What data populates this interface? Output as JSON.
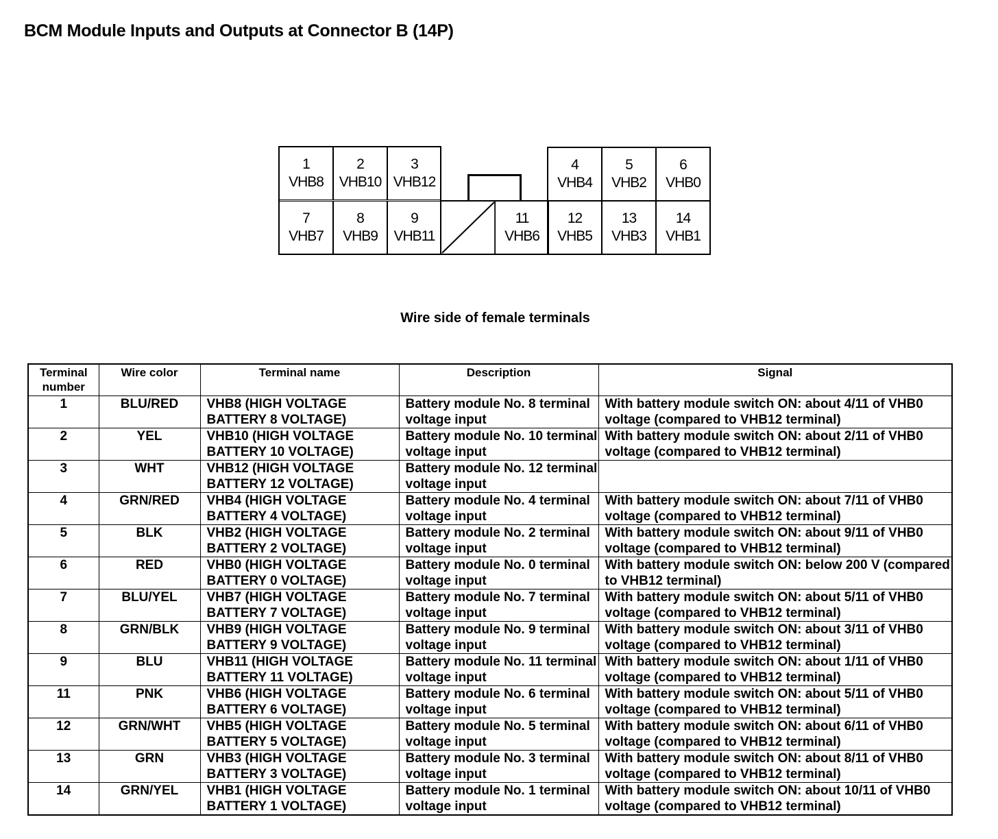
{
  "title": "BCM Module Inputs and Outputs at Connector B (14P)",
  "connector": {
    "caption": "Wire side of female terminals",
    "cells": [
      {
        "num": "1",
        "name": "VHB8"
      },
      {
        "num": "2",
        "name": "VHB10"
      },
      {
        "num": "3",
        "name": "VHB12"
      },
      {
        "num": "4",
        "name": "VHB4"
      },
      {
        "num": "5",
        "name": "VHB2"
      },
      {
        "num": "6",
        "name": "VHB0"
      },
      {
        "num": "7",
        "name": "VHB7"
      },
      {
        "num": "8",
        "name": "VHB9"
      },
      {
        "num": "9",
        "name": "VHB11"
      },
      {
        "num": "11",
        "name": "VHB6"
      },
      {
        "num": "12",
        "name": "VHB5"
      },
      {
        "num": "13",
        "name": "VHB3"
      },
      {
        "num": "14",
        "name": "VHB1"
      }
    ]
  },
  "table": {
    "headers": [
      "Terminal number",
      "Wire color",
      "Terminal name",
      "Description",
      "Signal"
    ],
    "rows": [
      {
        "num": "1",
        "color": "BLU/RED",
        "name": "VHB8 (HIGH VOLTAGE BATTERY 8 VOLTAGE)",
        "desc": "Battery module No. 8 terminal voltage input",
        "signal": "With battery module switch ON: about 4/11 of VHB0 voltage (compared to VHB12 terminal)"
      },
      {
        "num": "2",
        "color": "YEL",
        "name": "VHB10 (HIGH VOLTAGE BATTERY 10 VOLTAGE)",
        "desc": "Battery module No. 10 terminal voltage input",
        "signal": "With battery module switch ON: about 2/11 of VHB0 voltage (compared to VHB12 terminal)"
      },
      {
        "num": "3",
        "color": "WHT",
        "name": "VHB12 (HIGH VOLTAGE BATTERY 12 VOLTAGE)",
        "desc": "Battery module No. 12 terminal voltage input",
        "signal": ""
      },
      {
        "num": "4",
        "color": "GRN/RED",
        "name": "VHB4 (HIGH VOLTAGE BATTERY 4 VOLTAGE)",
        "desc": "Battery module No. 4 terminal voltage input",
        "signal": "With battery module switch ON: about 7/11 of VHB0 voltage (compared to VHB12 terminal)"
      },
      {
        "num": "5",
        "color": "BLK",
        "name": "VHB2 (HIGH VOLTAGE BATTERY 2 VOLTAGE)",
        "desc": "Battery module No. 2 terminal voltage input",
        "signal": "With battery module switch ON: about 9/11 of VHB0 voltage (compared to VHB12 terminal)"
      },
      {
        "num": "6",
        "color": "RED",
        "name": "VHB0 (HIGH VOLTAGE BATTERY 0 VOLTAGE)",
        "desc": "Battery module No. 0 terminal voltage input",
        "signal": "With battery module switch ON: below 200 V (compared to VHB12 terminal)"
      },
      {
        "num": "7",
        "color": "BLU/YEL",
        "name": "VHB7 (HIGH VOLTAGE BATTERY 7 VOLTAGE)",
        "desc": "Battery module No. 7 terminal voltage input",
        "signal": "With battery module switch ON: about 5/11 of VHB0 voltage (compared to VHB12 terminal)"
      },
      {
        "num": "8",
        "color": "GRN/BLK",
        "name": "VHB9 (HIGH VOLTAGE BATTERY 9 VOLTAGE)",
        "desc": "Battery module No. 9 terminal voltage input",
        "signal": "With battery module switch ON: about 3/11 of VHB0 voltage (compared to VHB12 terminal)"
      },
      {
        "num": "9",
        "color": "BLU",
        "name": "VHB11 (HIGH VOLTAGE BATTERY 11 VOLTAGE)",
        "desc": "Battery module No. 11 terminal voltage input",
        "signal": "With battery module switch ON: about 1/11 of VHB0 voltage (compared to VHB12 terminal)"
      },
      {
        "num": "11",
        "color": "PNK",
        "name": "VHB6 (HIGH VOLTAGE BATTERY 6 VOLTAGE)",
        "desc": "Battery module No. 6 terminal voltage input",
        "signal": "With battery module switch ON: about 5/11 of VHB0 voltage (compared to VHB12 terminal)"
      },
      {
        "num": "12",
        "color": "GRN/WHT",
        "name": "VHB5 (HIGH VOLTAGE BATTERY 5 VOLTAGE)",
        "desc": "Battery module No. 5 terminal voltage input",
        "signal": "With battery module switch ON: about 6/11 of VHB0 voltage (compared to VHB12 terminal)"
      },
      {
        "num": "13",
        "color": "GRN",
        "name": "VHB3 (HIGH VOLTAGE BATTERY 3 VOLTAGE)",
        "desc": "Battery module No. 3 terminal voltage input",
        "signal": "With battery module switch ON: about 8/11 of VHB0 voltage (compared to VHB12 terminal)"
      },
      {
        "num": "14",
        "color": "GRN/YEL",
        "name": "VHB1 (HIGH VOLTAGE BATTERY 1 VOLTAGE)",
        "desc": "Battery module No. 1 terminal voltage input",
        "signal": "With battery module switch ON: about 10/11 of VHB0 voltage (compared to VHB12 terminal)"
      }
    ]
  }
}
